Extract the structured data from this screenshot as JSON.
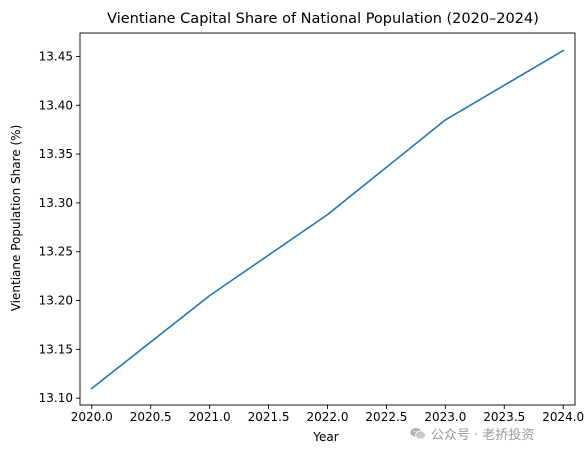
{
  "chart_data": {
    "type": "line",
    "title": "Vientiane Capital Share of National Population (2020–2024)",
    "xlabel": "Year",
    "ylabel": "Vientiane Population Share (%)",
    "xlim": [
      2019.9,
      2024.1
    ],
    "ylim": [
      13.093,
      13.474
    ],
    "xticks": [
      2020.0,
      2020.5,
      2021.0,
      2021.5,
      2022.0,
      2022.5,
      2023.0,
      2023.5,
      2024.0
    ],
    "xtick_labels": [
      "2020.0",
      "2020.5",
      "2021.0",
      "2021.5",
      "2022.0",
      "2022.5",
      "2023.0",
      "2023.5",
      "2024.0"
    ],
    "yticks": [
      13.1,
      13.15,
      13.2,
      13.25,
      13.3,
      13.35,
      13.4,
      13.45
    ],
    "ytick_labels": [
      "13.10",
      "13.15",
      "13.20",
      "13.25",
      "13.30",
      "13.35",
      "13.40",
      "13.45"
    ],
    "grid": false,
    "series": [
      {
        "color": "#1f77b4",
        "x": [
          2020,
          2021,
          2022,
          2023,
          2024
        ],
        "y": [
          13.11,
          13.205,
          13.288,
          13.385,
          13.456
        ]
      }
    ]
  },
  "watermark": {
    "text": "公众号 · 老挢投资",
    "icon": "wechat-icon"
  }
}
